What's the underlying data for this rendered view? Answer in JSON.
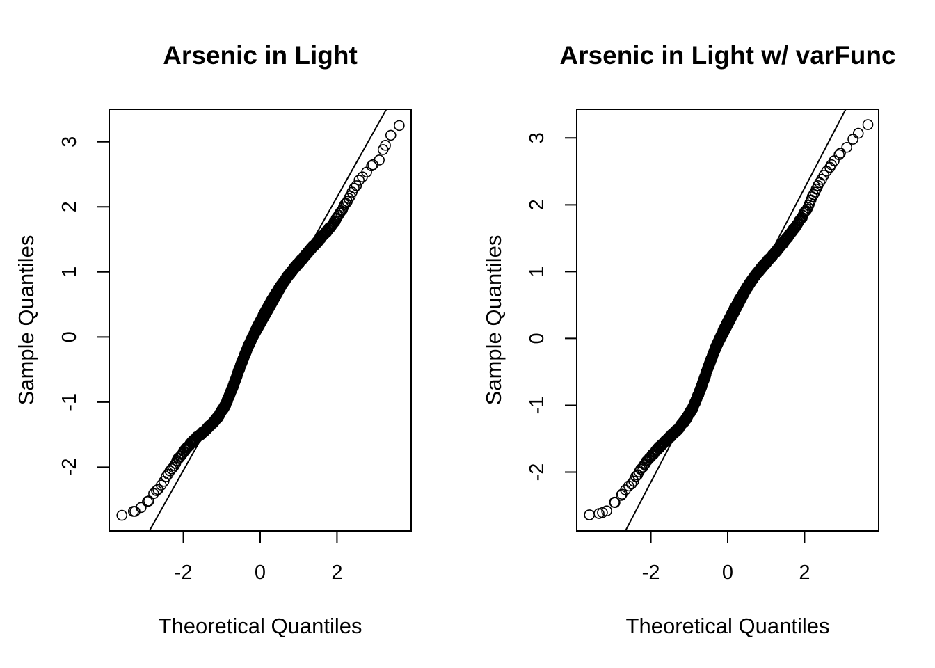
{
  "chart_data": [
    {
      "type": "scatter",
      "title": "Arsenic in Light",
      "xlabel": "Theoretical Quantiles",
      "ylabel": "Sample Quantiles",
      "xlim": [
        -3.93,
        3.93
      ],
      "ylim": [
        -2.98,
        3.5
      ],
      "xticks": [
        -2,
        0,
        2
      ],
      "yticks": [
        -2,
        -1,
        0,
        1,
        2,
        3
      ],
      "grid": false,
      "reference_line": {
        "intercept": 0.05,
        "slope": 1.05
      },
      "quantile_curve": [
        [
          -3.6,
          -2.74
        ],
        [
          -3.3,
          -2.68
        ],
        [
          -3.1,
          -2.62
        ],
        [
          -2.9,
          -2.52
        ],
        [
          -2.7,
          -2.36
        ],
        [
          -2.5,
          -2.2
        ],
        [
          -2.3,
          -2.03
        ],
        [
          -2.1,
          -1.84
        ],
        [
          -1.9,
          -1.7
        ],
        [
          -1.7,
          -1.57
        ],
        [
          -1.5,
          -1.47
        ],
        [
          -1.3,
          -1.36
        ],
        [
          -1.1,
          -1.23
        ],
        [
          -0.9,
          -1.04
        ],
        [
          -0.7,
          -0.75
        ],
        [
          -0.5,
          -0.42
        ],
        [
          -0.3,
          -0.13
        ],
        [
          -0.1,
          0.12
        ],
        [
          0.1,
          0.35
        ],
        [
          0.3,
          0.56
        ],
        [
          0.5,
          0.75
        ],
        [
          0.7,
          0.92
        ],
        [
          0.9,
          1.07
        ],
        [
          1.1,
          1.2
        ],
        [
          1.3,
          1.34
        ],
        [
          1.5,
          1.47
        ],
        [
          1.7,
          1.6
        ],
        [
          1.9,
          1.74
        ],
        [
          2.1,
          1.92
        ],
        [
          2.3,
          2.13
        ],
        [
          2.5,
          2.33
        ],
        [
          2.7,
          2.5
        ],
        [
          2.9,
          2.63
        ],
        [
          3.1,
          2.72
        ],
        [
          3.2,
          2.88
        ],
        [
          3.4,
          3.1
        ],
        [
          3.62,
          3.25
        ]
      ]
    },
    {
      "type": "scatter",
      "title": "Arsenic in Light w/ varFunc",
      "xlabel": "Theoretical Quantiles",
      "ylabel": "Sample Quantiles",
      "xlim": [
        -3.93,
        3.93
      ],
      "ylim": [
        -2.88,
        3.43
      ],
      "xticks": [
        -2,
        0,
        2
      ],
      "yticks": [
        -2,
        -1,
        0,
        1,
        2,
        3
      ],
      "grid": false,
      "reference_line": {
        "intercept": 0.05,
        "slope": 1.1
      },
      "quantile_curve": [
        [
          -3.6,
          -2.64
        ],
        [
          -3.35,
          -2.62
        ],
        [
          -3.15,
          -2.58
        ],
        [
          -2.95,
          -2.45
        ],
        [
          -2.75,
          -2.33
        ],
        [
          -2.5,
          -2.17
        ],
        [
          -2.3,
          -2.0
        ],
        [
          -2.1,
          -1.83
        ],
        [
          -1.9,
          -1.7
        ],
        [
          -1.7,
          -1.58
        ],
        [
          -1.5,
          -1.47
        ],
        [
          -1.3,
          -1.36
        ],
        [
          -1.1,
          -1.22
        ],
        [
          -0.9,
          -1.03
        ],
        [
          -0.7,
          -0.75
        ],
        [
          -0.5,
          -0.42
        ],
        [
          -0.3,
          -0.12
        ],
        [
          -0.1,
          0.13
        ],
        [
          0.1,
          0.36
        ],
        [
          0.3,
          0.57
        ],
        [
          0.5,
          0.76
        ],
        [
          0.7,
          0.93
        ],
        [
          0.9,
          1.07
        ],
        [
          1.1,
          1.2
        ],
        [
          1.3,
          1.33
        ],
        [
          1.5,
          1.47
        ],
        [
          1.7,
          1.62
        ],
        [
          1.9,
          1.78
        ],
        [
          2.1,
          1.98
        ],
        [
          2.3,
          2.23
        ],
        [
          2.5,
          2.43
        ],
        [
          2.7,
          2.6
        ],
        [
          2.9,
          2.75
        ],
        [
          3.1,
          2.86
        ],
        [
          3.4,
          3.07
        ],
        [
          3.65,
          3.2
        ]
      ]
    }
  ]
}
